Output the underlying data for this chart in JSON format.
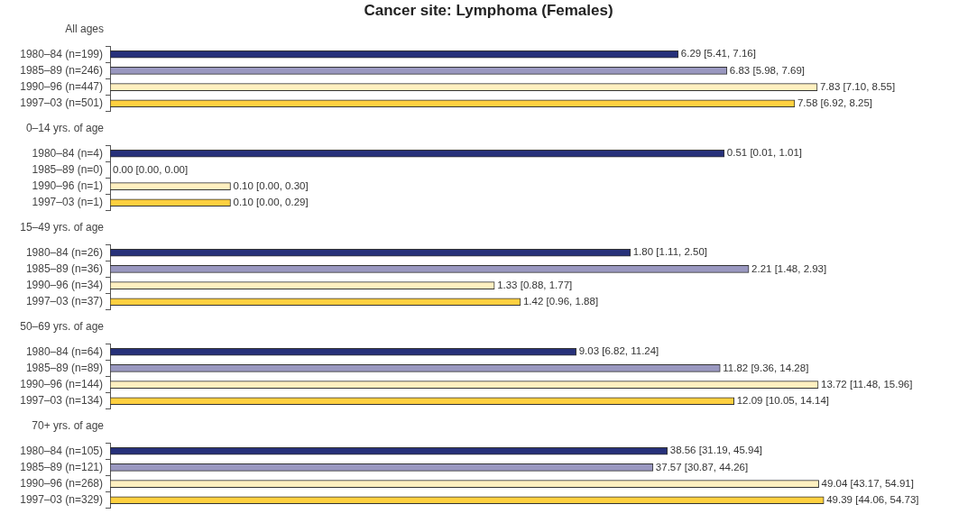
{
  "chart_data": [
    {
      "type": "bar",
      "orientation": "horizontal",
      "title": "Cancer site: Lymphoma (Females)",
      "subtitle": "All ages",
      "categories": [
        "1980–84 (n=199)",
        "1985–89 (n=246)",
        "1990–96 (n=447)",
        "1997–03 (n=501)"
      ],
      "values": [
        6.29,
        6.83,
        7.83,
        7.58
      ],
      "colors": [
        "#27317a",
        "#9a98c0",
        "#fff0c0",
        "#ffd040"
      ],
      "value_labels": [
        "6.29 [5.41, 7.16]",
        "6.83 [5.98, 7.69]",
        "7.83 [7.10, 8.55]",
        "7.58 [6.92, 8.25]"
      ],
      "tick_labels": "y",
      "grid": false,
      "legend": false
    },
    {
      "type": "bar",
      "orientation": "horizontal",
      "subtitle": "0–14 yrs. of age",
      "categories": [
        "1980–84 (n=4)",
        "1985–89 (n=0)",
        "1990–96 (n=1)",
        "1997–03 (n=1)"
      ],
      "values": [
        0.51,
        0.0,
        0.1,
        0.1
      ],
      "colors": [
        "#27317a",
        "#9a98c0",
        "#fff0c0",
        "#ffd040"
      ],
      "value_labels": [
        "0.51 [0.01, 1.01]",
        "0.00 [0.00, 0.00]",
        "0.10 [0.00, 0.30]",
        "0.10 [0.00, 0.29]"
      ],
      "tick_labels": "y",
      "grid": false,
      "legend": false
    },
    {
      "type": "bar",
      "orientation": "horizontal",
      "subtitle": "15–49 yrs. of age",
      "categories": [
        "1980–84 (n=26)",
        "1985–89 (n=36)",
        "1990–96 (n=34)",
        "1997–03 (n=37)"
      ],
      "values": [
        1.8,
        2.21,
        1.33,
        1.42
      ],
      "colors": [
        "#27317a",
        "#9a98c0",
        "#fff0c0",
        "#ffd040"
      ],
      "value_labels": [
        "1.80 [1.11, 2.50]",
        "2.21 [1.48, 2.93]",
        "1.33 [0.88, 1.77]",
        "1.42 [0.96, 1.88]"
      ],
      "tick_labels": "y",
      "grid": false,
      "legend": false
    },
    {
      "type": "bar",
      "orientation": "horizontal",
      "subtitle": "50–69 yrs. of age",
      "categories": [
        "1980–84 (n=64)",
        "1985–89 (n=89)",
        "1990–96 (n=144)",
        "1997–03 (n=134)"
      ],
      "values": [
        9.03,
        11.82,
        13.72,
        12.09
      ],
      "colors": [
        "#27317a",
        "#9a98c0",
        "#fff0c0",
        "#ffd040"
      ],
      "value_labels": [
        "9.03 [6.82, 11.24]",
        "11.82 [9.36, 14.28]",
        "13.72 [11.48, 15.96]",
        "12.09 [10.05, 14.14]"
      ],
      "tick_labels": "y",
      "grid": false,
      "legend": false
    },
    {
      "type": "bar",
      "orientation": "horizontal",
      "subtitle": "70+ yrs. of age",
      "categories": [
        "1980–84 (n=105)",
        "1985–89 (n=121)",
        "1990–96 (n=268)",
        "1997–03 (n=329)"
      ],
      "values": [
        38.56,
        37.57,
        49.04,
        49.39
      ],
      "colors": [
        "#27317a",
        "#9a98c0",
        "#fff0c0",
        "#ffd040"
      ],
      "value_labels": [
        "38.56 [31.19, 45.94]",
        "37.57 [30.87, 44.26]",
        "49.04 [43.17, 54.91]",
        "49.39 [44.06, 54.73]"
      ],
      "tick_labels": "y",
      "grid": false,
      "legend": false
    }
  ]
}
